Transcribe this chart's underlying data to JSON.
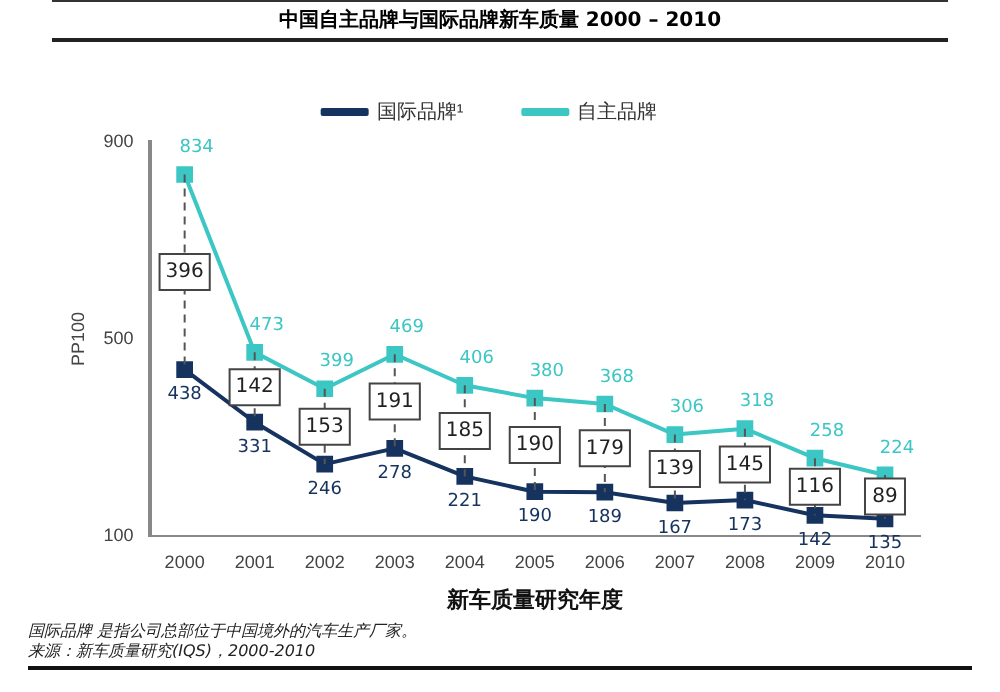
{
  "chart_data": {
    "type": "line",
    "title": "中国自主品牌与国际品牌新车质量 2000 – 2010",
    "xlabel": "新车质量研究年度",
    "ylabel": "PP100",
    "categories": [
      "2000",
      "2001",
      "2002",
      "2003",
      "2004",
      "2005",
      "2006",
      "2007",
      "2008",
      "2009",
      "2010"
    ],
    "series": [
      {
        "name": "国际品牌¹",
        "color": "#15335e",
        "values": [
          438,
          331,
          246,
          278,
          221,
          190,
          189,
          167,
          173,
          142,
          135
        ],
        "errors": [
          [
            438,
            834
          ],
          [
            331,
            473
          ],
          [
            246,
            399
          ],
          [
            278,
            469
          ],
          [
            221,
            406
          ],
          [
            190,
            380
          ],
          [
            189,
            368
          ],
          [
            167,
            306
          ],
          [
            173,
            318
          ],
          [
            142,
            258
          ],
          [
            135,
            224
          ]
        ]
      },
      {
        "name": "自主品牌",
        "color": "#3cc6c4",
        "values": [
          834,
          473,
          399,
          469,
          406,
          380,
          368,
          306,
          318,
          258,
          224
        ]
      }
    ],
    "ylim": [
      100,
      900
    ],
    "yticks": [
      100,
      500,
      900
    ],
    "grid": false,
    "legend": "top",
    "marker": "square",
    "line_style": "solid",
    "data_labels": true,
    "annotations": [
      {
        "text": "396",
        "x": "2000",
        "y": 636
      },
      {
        "text": "142",
        "x": "2001",
        "y": 402
      },
      {
        "text": "153",
        "x": "2002",
        "y": 322
      },
      {
        "text": "191",
        "x": "2003",
        "y": 373
      },
      {
        "text": "185",
        "x": "2004",
        "y": 313
      },
      {
        "text": "190",
        "x": "2005",
        "y": 285
      },
      {
        "text": "179",
        "x": "2006",
        "y": 278
      },
      {
        "text": "139",
        "x": "2007",
        "y": 236
      },
      {
        "text": "145",
        "x": "2008",
        "y": 245
      },
      {
        "text": "116",
        "x": "2009",
        "y": 200
      },
      {
        "text": "89",
        "x": "2010",
        "y": 180
      },
      "国际品牌 是指公司总部位于中国境外的汽车生产厂家。",
      "来源：新车质量研究(IQS)，2000-2010"
    ]
  }
}
